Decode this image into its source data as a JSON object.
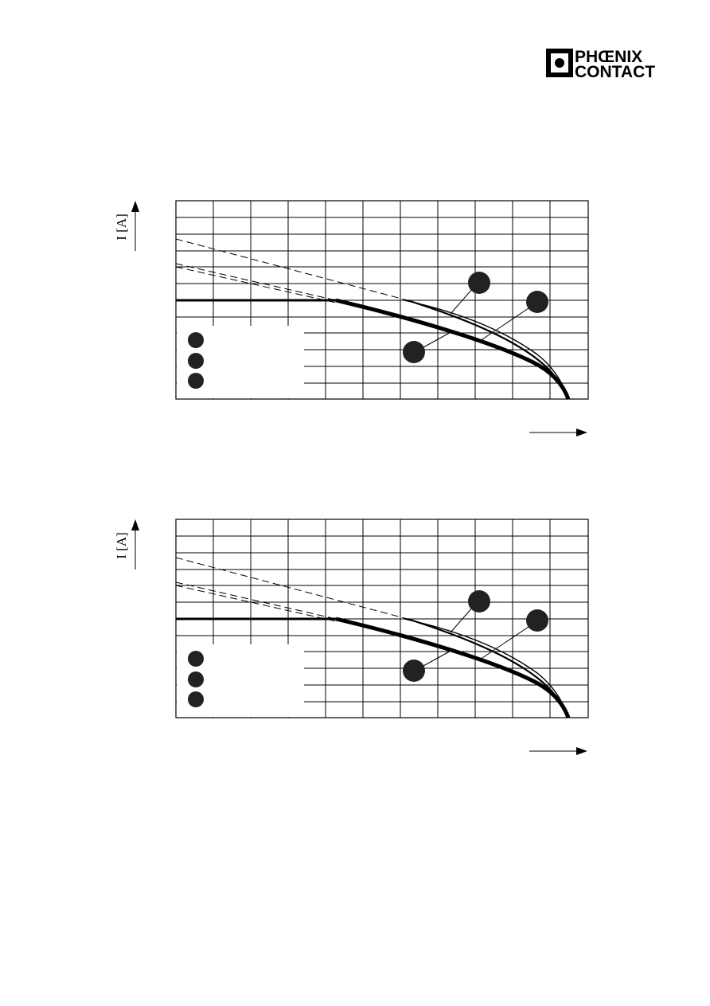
{
  "logo": {
    "line1": "PHŒNIX",
    "line2": "CONTACT"
  },
  "charts": [
    {
      "y_axis_label": "I [A]"
    },
    {
      "y_axis_label": "I [A]"
    }
  ]
}
